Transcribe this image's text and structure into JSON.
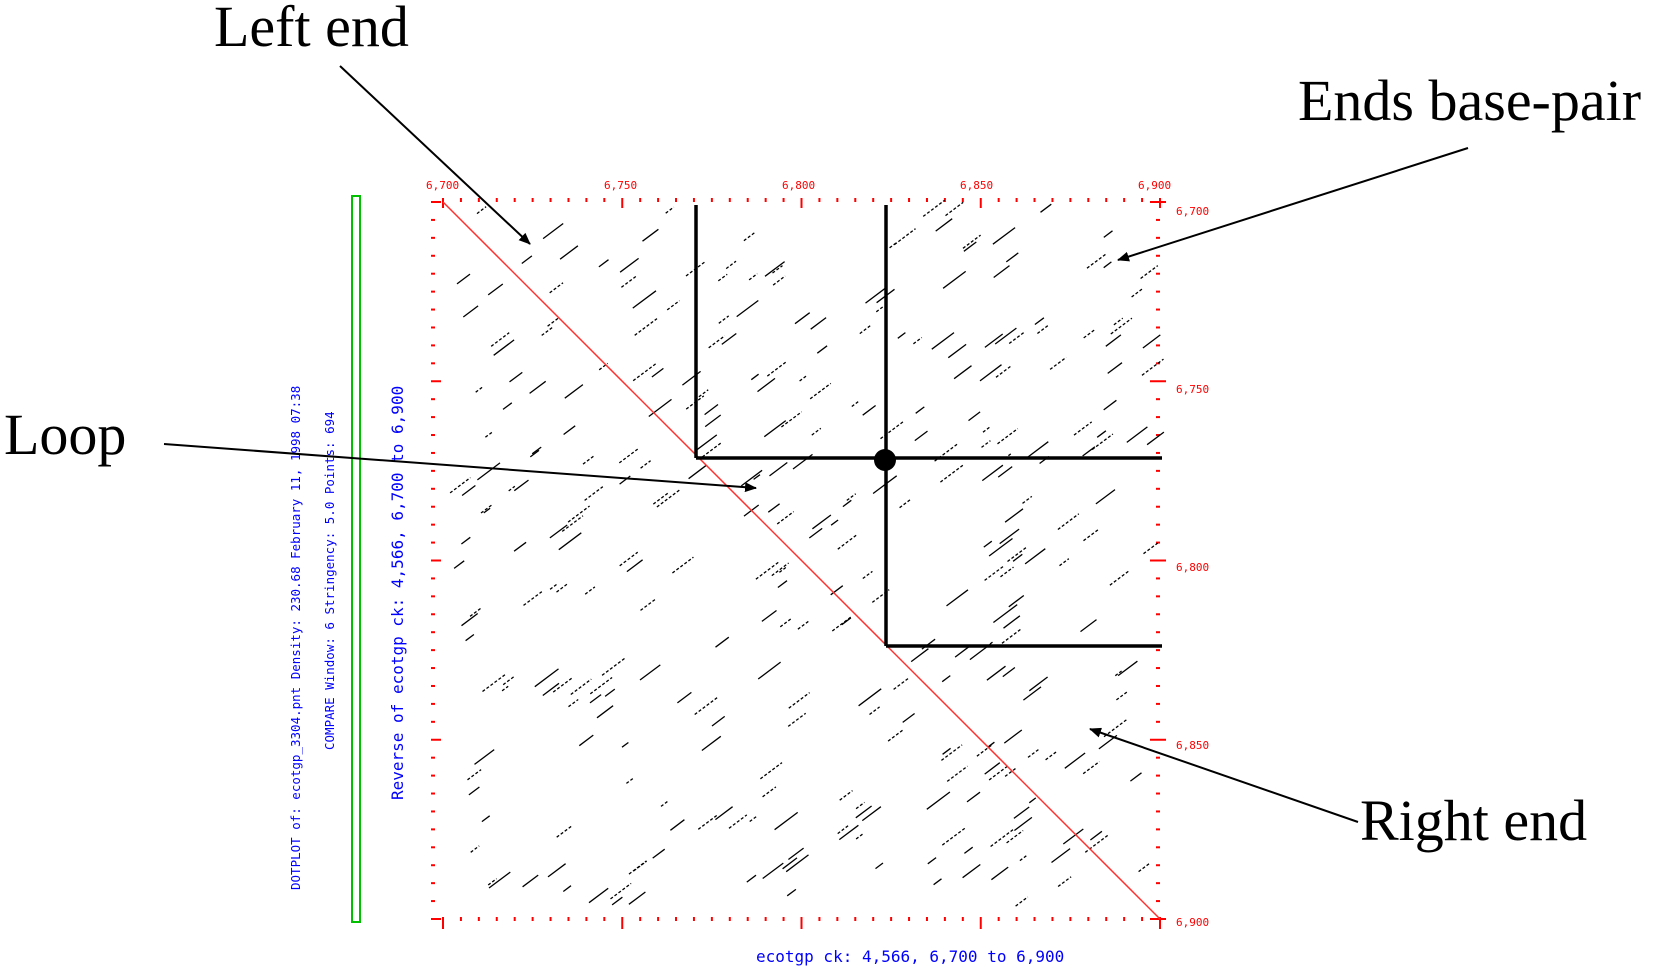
{
  "annotations": {
    "left_end": "Left end",
    "ends_base_pair": "Ends base-pair",
    "loop": "Loop",
    "right_end": "Right end"
  },
  "plot": {
    "top_ticks": [
      "6,700",
      "6,750",
      "6,800",
      "6,850",
      "6,900"
    ],
    "right_ticks": [
      "6,700",
      "6,750",
      "6,800",
      "6,850",
      "6,900"
    ],
    "x_axis_label": "ecotgp ck: 4,566, 6,700 to 6,900",
    "y_axis_label": "Reverse of ecotgp ck: 4,566, 6,700 to 6,900",
    "info_line_1": "DOTPLOT of: ecotgp_3304.pnt  Density: 230.68  February 11, 1998 07:38",
    "info_line_2": "COMPARE  Window: 6  Stringency: 5.0  Points: 694",
    "range": [
      6700,
      6900
    ]
  },
  "colors": {
    "axis": "#ff0000",
    "diagonal": "#ff3030",
    "info_text": "#0000ff",
    "frame": "#00c000",
    "dots": "#000000",
    "overlay": "#000000"
  }
}
